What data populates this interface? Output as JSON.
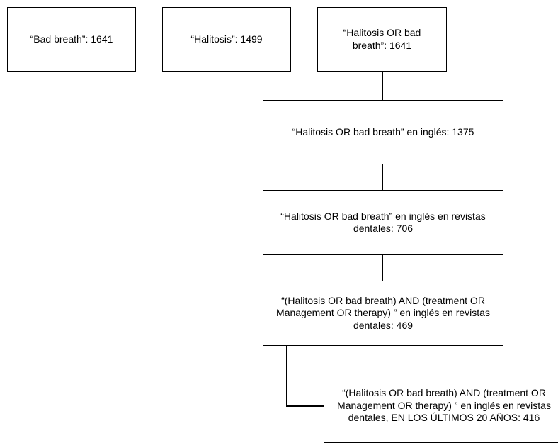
{
  "flowchart": {
    "nodes": {
      "bad_breath": "“Bad breath”: 1641",
      "halitosis": "“Halitosis”: 1499",
      "halitosis_or_bad_breath": "“Halitosis OR bad breath”: 1641",
      "english": "“Halitosis OR bad breath” en inglés: 1375",
      "dental_journals": "“Halitosis OR bad breath” en inglés en revistas dentales: 706",
      "treatment": "“(Halitosis OR bad breath) AND (treatment OR Management OR therapy) ” en inglés en revistas dentales: 469",
      "last_20_years": "“(Halitosis OR bad breath) AND (treatment OR Management OR therapy) ” en inglés en revistas dentales, EN LOS ÚLTIMOS 20 AÑOS: 416"
    }
  }
}
